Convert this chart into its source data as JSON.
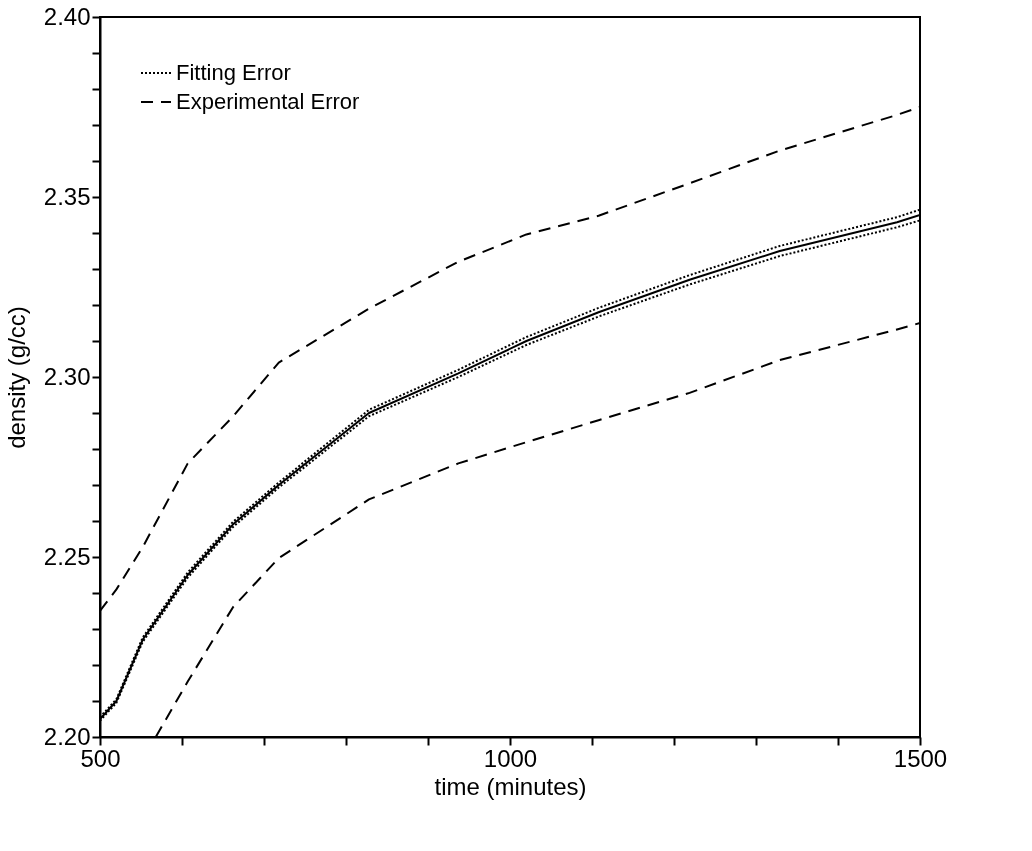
{
  "chart_data": {
    "type": "line",
    "xlabel": "time (minutes)",
    "ylabel": "density (g/cc)",
    "xlim": [
      500,
      1500
    ],
    "ylim": [
      2.2,
      2.4
    ],
    "xticks": [
      500,
      {
        "value": 600,
        "label": null
      },
      {
        "value": 700,
        "label": null
      },
      {
        "value": 800,
        "label": null
      },
      {
        "value": 900,
        "label": null
      },
      1000,
      {
        "value": 1100,
        "label": null
      },
      {
        "value": 1200,
        "label": null
      },
      {
        "value": 1300,
        "label": null
      },
      {
        "value": 1400,
        "label": null
      },
      1500
    ],
    "yticks": [
      {
        "value": 2.2,
        "label": "2.20"
      },
      {
        "value": 2.21,
        "label": null
      },
      {
        "value": 2.22,
        "label": null
      },
      {
        "value": 2.23,
        "label": null
      },
      {
        "value": 2.24,
        "label": null
      },
      {
        "value": 2.25,
        "label": "2.25"
      },
      {
        "value": 2.26,
        "label": null
      },
      {
        "value": 2.27,
        "label": null
      },
      {
        "value": 2.28,
        "label": null
      },
      {
        "value": 2.29,
        "label": null
      },
      {
        "value": 2.3,
        "label": "2.30"
      },
      {
        "value": 2.31,
        "label": null
      },
      {
        "value": 2.32,
        "label": null
      },
      {
        "value": 2.33,
        "label": null
      },
      {
        "value": 2.34,
        "label": null
      },
      {
        "value": 2.35,
        "label": "2.35"
      },
      {
        "value": 2.36,
        "label": null
      },
      {
        "value": 2.37,
        "label": null
      },
      {
        "value": 2.38,
        "label": null
      },
      {
        "value": 2.39,
        "label": null
      },
      {
        "value": 2.4,
        "label": "2.40"
      }
    ],
    "grid": false,
    "legend": "top left",
    "marker": "none",
    "x": [
      500,
      520,
      552,
      607,
      662,
      718,
      828,
      937,
      1020,
      1108,
      1219,
      1329,
      1472,
      1500
    ],
    "series": [
      {
        "color": "#000000",
        "line_style": "solid",
        "values": [
          2.205,
          2.21,
          2.227,
          2.245,
          2.259,
          2.27,
          2.29,
          2.301,
          2.31,
          2.318,
          2.327,
          2.335,
          2.343,
          2.345
        ]
      },
      {
        "name": "Fitting Error",
        "color": "#000000",
        "line_style": "dotted",
        "values": [
          2.2055,
          2.2105,
          2.2276,
          2.2457,
          2.2597,
          2.2707,
          2.2909,
          2.302,
          2.3111,
          2.3192,
          2.3283,
          2.3364,
          2.3444,
          2.3465
        ]
      },
      {
        "color": "#000000",
        "line_style": "dotted",
        "values": [
          2.2045,
          2.2095,
          2.2264,
          2.2443,
          2.2583,
          2.2693,
          2.2891,
          2.3,
          2.3089,
          2.3168,
          2.3257,
          2.3336,
          2.3416,
          2.3435
        ]
      },
      {
        "name": "Experimental Error",
        "color": "#000000",
        "line_style": "dashed",
        "values": [
          2.235,
          2.241,
          2.2527,
          2.276,
          2.289,
          2.304,
          2.319,
          2.332,
          2.3396,
          2.3448,
          2.3538,
          2.3629,
          2.3728,
          2.375
        ]
      },
      {
        "color": "#000000",
        "line_style": "dashed",
        "x": [
          568,
          607,
          662,
          718,
          828,
          937,
          1020,
          1108,
          1219,
          1329,
          1472,
          1500
        ],
        "values": [
          2.2,
          2.2154,
          2.236,
          2.2497,
          2.266,
          2.276,
          2.2819,
          2.288,
          2.2956,
          2.3047,
          2.3132,
          2.315
        ]
      }
    ]
  }
}
